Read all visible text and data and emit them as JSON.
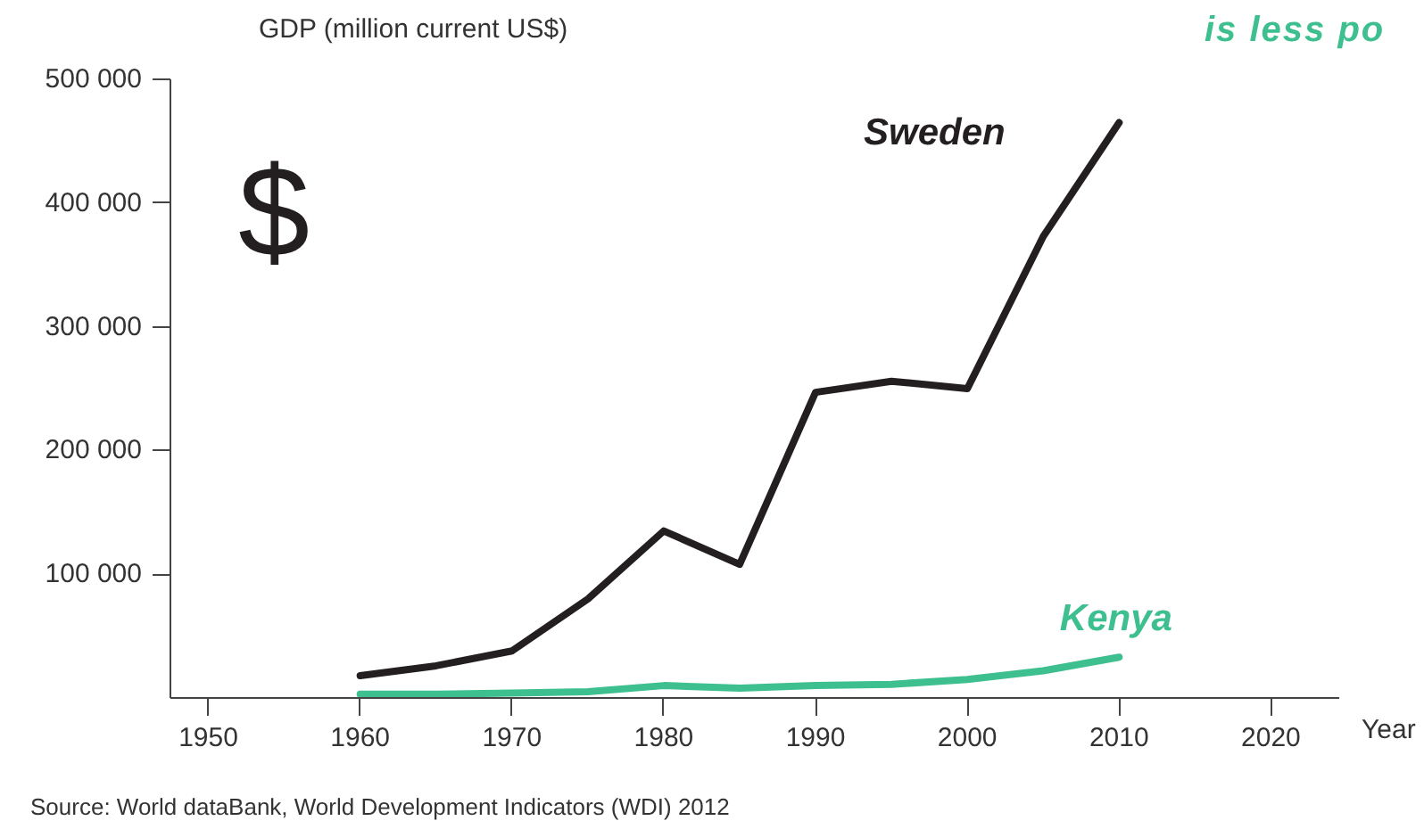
{
  "chart_data": {
    "type": "line",
    "ylabel": "GDP (million current US$)",
    "xlabel": "Year",
    "x": [
      1960,
      1965,
      1970,
      1975,
      1980,
      1985,
      1990,
      1995,
      2000,
      2005,
      2010
    ],
    "series": [
      {
        "name": "Sweden",
        "color": "#231f20",
        "values": [
          18000,
          26000,
          38000,
          80000,
          135000,
          108000,
          247000,
          256000,
          250000,
          373000,
          465000
        ]
      },
      {
        "name": "Kenya",
        "color": "#3dbf8f",
        "values": [
          3000,
          3000,
          4000,
          5000,
          10000,
          8000,
          10000,
          11000,
          15000,
          22000,
          33000
        ]
      }
    ],
    "xlim": [
      1947.5,
      2024.5
    ],
    "ylim": [
      0,
      500000
    ],
    "xticks": [
      1950,
      1960,
      1970,
      1980,
      1990,
      2000,
      2010,
      2020
    ],
    "yticks": [
      {
        "value": 100000,
        "label": "100 000"
      },
      {
        "value": 200000,
        "label": "200 000"
      },
      {
        "value": 300000,
        "label": "300 000"
      },
      {
        "value": 400000,
        "label": "400 000"
      },
      {
        "value": 500000,
        "label": "500 000"
      }
    ],
    "grid": false,
    "marker": "none",
    "line_style": "solid",
    "annotations": [
      {
        "text": "$"
      },
      {
        "text": "is less po"
      },
      {
        "text": "Source: World dataBank, World Development Indicators (WDI) 2012"
      }
    ]
  }
}
